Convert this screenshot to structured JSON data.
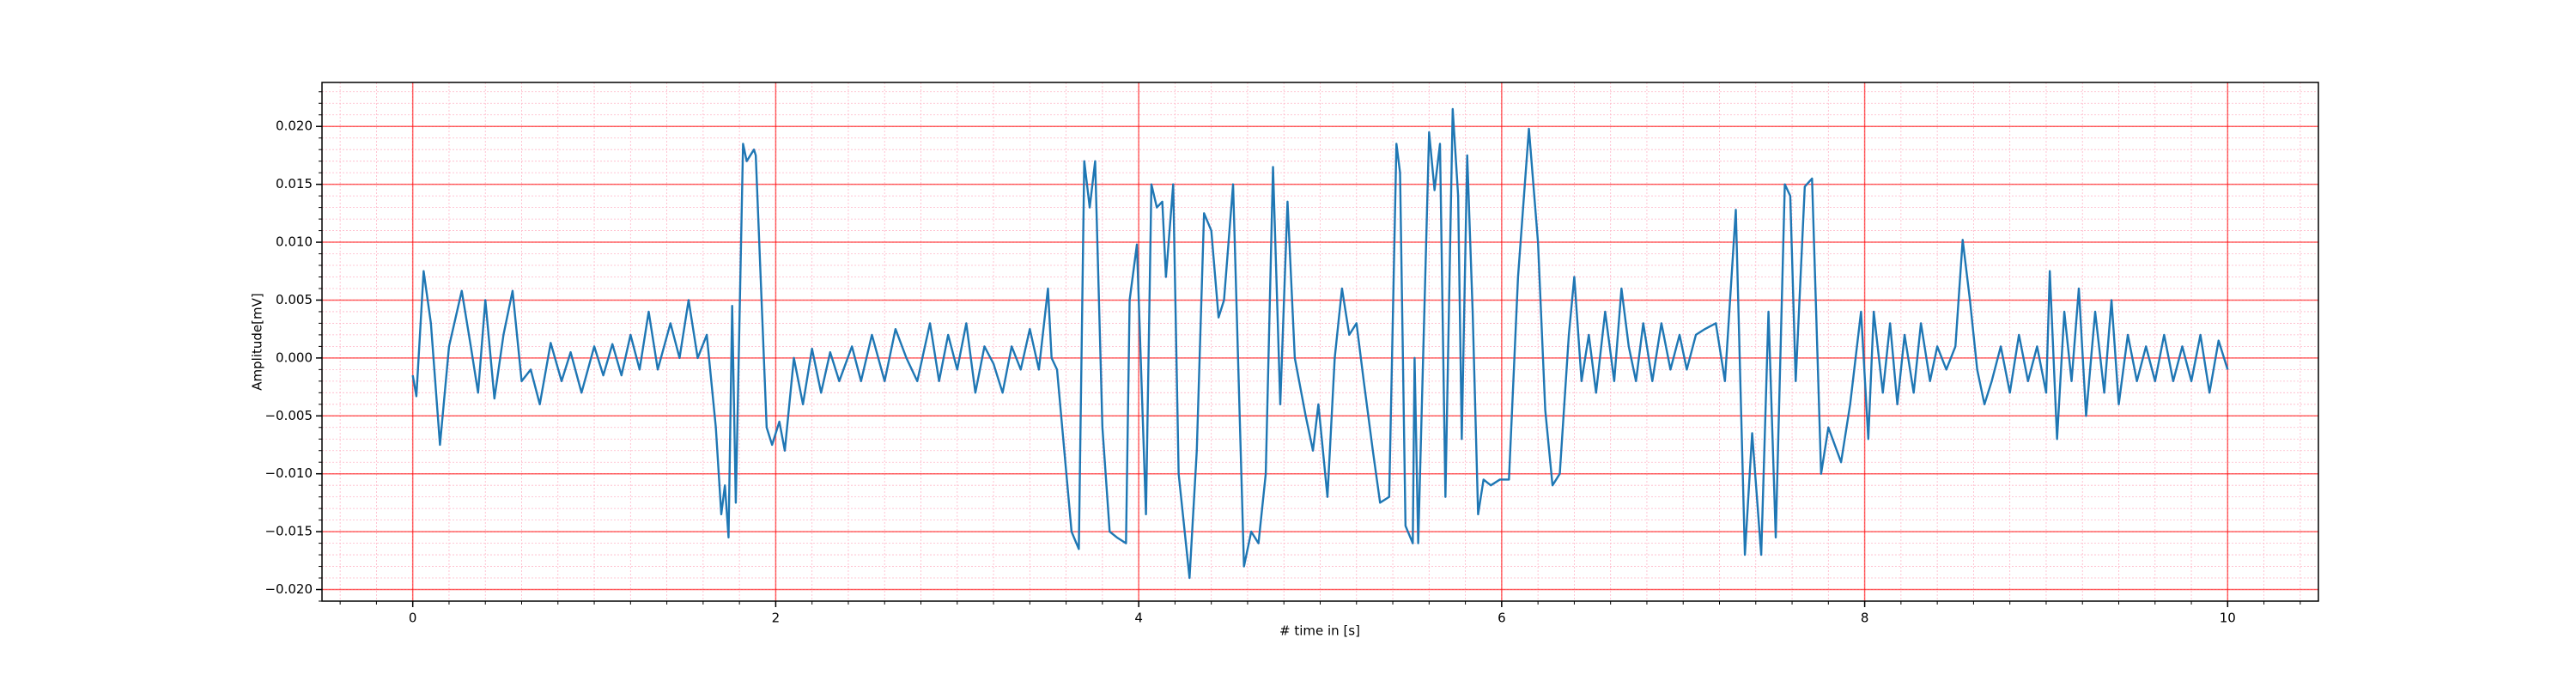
{
  "chart_data": {
    "type": "line",
    "xlabel": "# time in [s]",
    "ylabel": "Amplitude[mV]",
    "xlim": [
      -0.5,
      10.5
    ],
    "ylim": [
      -0.021,
      0.0238
    ],
    "xticks": [
      0,
      2,
      4,
      6,
      8,
      10
    ],
    "yticks": [
      {
        "value": -0.02,
        "label": "−0.020"
      },
      {
        "value": -0.015,
        "label": "−0.015"
      },
      {
        "value": -0.01,
        "label": "−0.010"
      },
      {
        "value": -0.005,
        "label": "−0.005"
      },
      {
        "value": 0,
        "label": "0.000"
      },
      {
        "value": 0.005,
        "label": "0.005"
      },
      {
        "value": 0.01,
        "label": "0.010"
      },
      {
        "value": 0.015,
        "label": "0.015"
      },
      {
        "value": 0.02,
        "label": "0.020"
      }
    ],
    "grid": true,
    "grid_color": "#ff0000",
    "minor_grid": {
      "x_step": 0.2,
      "y_step": 0.001,
      "color": "#ffb6c8"
    },
    "series": [
      {
        "color": "#1f77b4",
        "x": [
          0,
          0.02,
          0.06,
          0.1,
          0.15,
          0.2,
          0.27,
          0.32,
          0.36,
          0.4,
          0.45,
          0.5,
          0.55,
          0.6,
          0.65,
          0.7,
          0.76,
          0.82,
          0.87,
          0.93,
          1.0,
          1.05,
          1.1,
          1.15,
          1.2,
          1.25,
          1.3,
          1.35,
          1.42,
          1.47,
          1.52,
          1.57,
          1.62,
          1.67,
          1.7,
          1.72,
          1.74,
          1.76,
          1.78,
          1.82,
          1.84,
          1.88,
          1.89,
          1.95,
          1.98,
          2.02,
          2.05,
          2.1,
          2.15,
          2.2,
          2.25,
          2.3,
          2.35,
          2.42,
          2.47,
          2.53,
          2.6,
          2.66,
          2.72,
          2.78,
          2.85,
          2.9,
          2.95,
          3.0,
          3.05,
          3.1,
          3.15,
          3.2,
          3.25,
          3.3,
          3.35,
          3.4,
          3.45,
          3.5,
          3.52,
          3.55,
          3.63,
          3.67,
          3.7,
          3.73,
          3.76,
          3.8,
          3.84,
          3.88,
          3.93,
          3.95,
          3.99,
          4.04,
          4.07,
          4.1,
          4.13,
          4.15,
          4.19,
          4.22,
          4.28,
          4.32,
          4.36,
          4.4,
          4.44,
          4.47,
          4.52,
          4.58,
          4.62,
          4.66,
          4.7,
          4.74,
          4.78,
          4.82,
          4.86,
          4.92,
          4.96,
          4.99,
          5.04,
          5.08,
          5.12,
          5.16,
          5.2,
          5.24,
          5.29,
          5.33,
          5.38,
          5.42,
          5.44,
          5.47,
          5.51,
          5.52,
          5.54,
          5.6,
          5.63,
          5.66,
          5.69,
          5.73,
          5.76,
          5.78,
          5.81,
          5.84,
          5.87,
          5.9,
          5.94,
          5.99,
          6.04,
          6.09,
          6.15,
          6.2,
          6.24,
          6.28,
          6.32,
          6.37,
          6.4,
          6.44,
          6.48,
          6.52,
          6.57,
          6.62,
          6.66,
          6.7,
          6.74,
          6.78,
          6.83,
          6.88,
          6.93,
          6.98,
          7.02,
          7.07,
          7.12,
          7.18,
          7.23,
          7.29,
          7.34,
          7.38,
          7.43,
          7.47,
          7.51,
          7.56,
          7.59,
          7.62,
          7.67,
          7.71,
          7.76,
          7.8,
          7.87,
          7.92,
          7.98,
          8.02,
          8.05,
          8.1,
          8.14,
          8.18,
          8.22,
          8.27,
          8.31,
          8.36,
          8.4,
          8.45,
          8.5,
          8.54,
          8.58,
          8.62,
          8.66,
          8.7,
          8.75,
          8.8,
          8.85,
          8.9,
          8.95,
          9.0,
          9.02,
          9.06,
          9.1,
          9.14,
          9.18,
          9.22,
          9.27,
          9.32,
          9.36,
          9.4,
          9.45,
          9.5,
          9.55,
          9.6,
          9.65,
          9.7,
          9.75,
          9.8,
          9.85,
          9.9,
          9.95,
          10.0
        ],
        "values": [
          -0.0015,
          -0.0033,
          0.0075,
          0.003,
          -0.0075,
          0.001,
          0.0058,
          0.001,
          -0.003,
          0.005,
          -0.0035,
          0.002,
          0.0058,
          -0.002,
          -0.001,
          -0.004,
          0.0013,
          -0.002,
          0.0005,
          -0.003,
          0.001,
          -0.0015,
          0.0012,
          -0.0015,
          0.002,
          -0.001,
          0.004,
          -0.001,
          0.003,
          0.0,
          0.005,
          0.0,
          0.002,
          -0.006,
          -0.0135,
          -0.011,
          -0.0155,
          0.0045,
          -0.0125,
          0.0185,
          0.017,
          0.018,
          0.0175,
          -0.006,
          -0.0075,
          -0.0055,
          -0.008,
          0.0,
          -0.004,
          0.0008,
          -0.003,
          0.0005,
          -0.002,
          0.001,
          -0.002,
          0.002,
          -0.002,
          0.0025,
          0.0,
          -0.002,
          0.003,
          -0.002,
          0.002,
          -0.001,
          0.003,
          -0.003,
          0.001,
          -0.0005,
          -0.003,
          0.001,
          -0.001,
          0.0025,
          -0.001,
          0.006,
          0.0,
          -0.001,
          -0.015,
          -0.0165,
          0.017,
          0.013,
          0.017,
          -0.006,
          -0.015,
          -0.0155,
          -0.016,
          0.005,
          0.0098,
          -0.0135,
          0.015,
          0.013,
          0.0135,
          0.007,
          0.015,
          -0.01,
          -0.019,
          -0.008,
          0.0125,
          0.011,
          0.0035,
          0.005,
          0.015,
          -0.018,
          -0.015,
          -0.016,
          -0.01,
          0.0165,
          -0.004,
          0.0135,
          0.0,
          -0.005,
          -0.008,
          -0.004,
          -0.012,
          0.0,
          0.006,
          0.002,
          0.003,
          -0.002,
          -0.008,
          -0.0125,
          -0.012,
          0.0185,
          0.016,
          -0.0145,
          -0.016,
          0.0,
          -0.016,
          0.0195,
          0.0145,
          0.0185,
          -0.012,
          0.0215,
          0.014,
          -0.007,
          0.0175,
          0.004,
          -0.0135,
          -0.0105,
          -0.011,
          -0.0105,
          -0.0105,
          0.007,
          0.0198,
          0.01,
          -0.0045,
          -0.011,
          -0.01,
          0.002,
          0.007,
          -0.002,
          0.002,
          -0.003,
          0.004,
          -0.002,
          0.006,
          0.001,
          -0.002,
          0.003,
          -0.002,
          0.003,
          -0.001,
          0.002,
          -0.001,
          0.002,
          0.0025,
          0.003,
          -0.002,
          0.0128,
          -0.017,
          -0.0065,
          -0.017,
          0.004,
          -0.0155,
          0.015,
          0.014,
          -0.002,
          0.0148,
          0.0155,
          -0.01,
          -0.006,
          -0.009,
          -0.004,
          0.004,
          -0.007,
          0.004,
          -0.003,
          0.003,
          -0.004,
          0.002,
          -0.003,
          0.003,
          -0.002,
          0.001,
          -0.001,
          0.001,
          0.0102,
          0.005,
          -0.001,
          -0.004,
          -0.002,
          0.001,
          -0.003,
          0.002,
          -0.002,
          0.001,
          -0.003,
          0.0075,
          -0.007,
          0.004,
          -0.002,
          0.006,
          -0.005,
          0.004,
          -0.003,
          0.005,
          -0.004,
          0.002,
          -0.002,
          0.001,
          -0.002,
          0.002,
          -0.002,
          0.001,
          -0.002,
          0.002,
          -0.003,
          0.0015,
          -0.001
        ]
      }
    ]
  }
}
